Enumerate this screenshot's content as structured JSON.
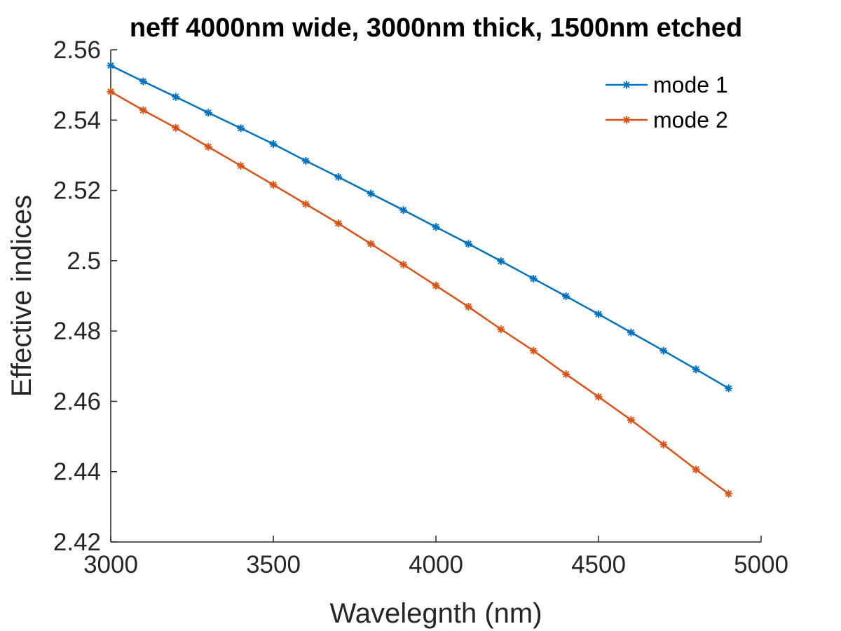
{
  "chart_data": {
    "type": "line",
    "title": "neff  4000nm wide, 3000nm thick, 1500nm etched",
    "xlabel": "Wavelegnth (nm)",
    "ylabel": "Effective indices",
    "xlim": [
      3000,
      5000
    ],
    "ylim": [
      2.42,
      2.56
    ],
    "xticks": [
      3000,
      3500,
      4000,
      4500,
      5000
    ],
    "yticks": [
      2.42,
      2.44,
      2.46,
      2.48,
      2.5,
      2.52,
      2.54,
      2.56
    ],
    "xtick_labels": [
      "3000",
      "3500",
      "4000",
      "4500",
      "5000"
    ],
    "ytick_labels": [
      "2.42",
      "2.44",
      "2.46",
      "2.48",
      "2.5",
      "2.52",
      "2.54",
      "2.56"
    ],
    "grid": false,
    "legend_position": "top-right",
    "x": [
      3000,
      3100,
      3200,
      3300,
      3400,
      3500,
      3600,
      3700,
      3800,
      3900,
      4000,
      4100,
      4200,
      4300,
      4400,
      4500,
      4600,
      4700,
      4800,
      4900
    ],
    "series": [
      {
        "name": "mode 1",
        "color": "#0072BD",
        "marker": "asterisk",
        "values": [
          2.5555,
          2.551,
          2.5466,
          2.5421,
          2.5377,
          2.5332,
          2.5284,
          2.5238,
          2.5191,
          2.5144,
          2.5096,
          2.5048,
          2.4999,
          2.4949,
          2.4899,
          2.4848,
          2.4796,
          2.4744,
          2.4691,
          2.4637
        ]
      },
      {
        "name": "mode 2",
        "color": "#D95319",
        "marker": "asterisk",
        "values": [
          2.5481,
          2.5428,
          2.5378,
          2.5324,
          2.527,
          2.5216,
          2.5161,
          2.5106,
          2.5048,
          2.4989,
          2.4929,
          2.4869,
          2.4805,
          2.4744,
          2.4677,
          2.4613,
          2.4547,
          2.4477,
          2.4406,
          2.4337
        ]
      }
    ]
  }
}
